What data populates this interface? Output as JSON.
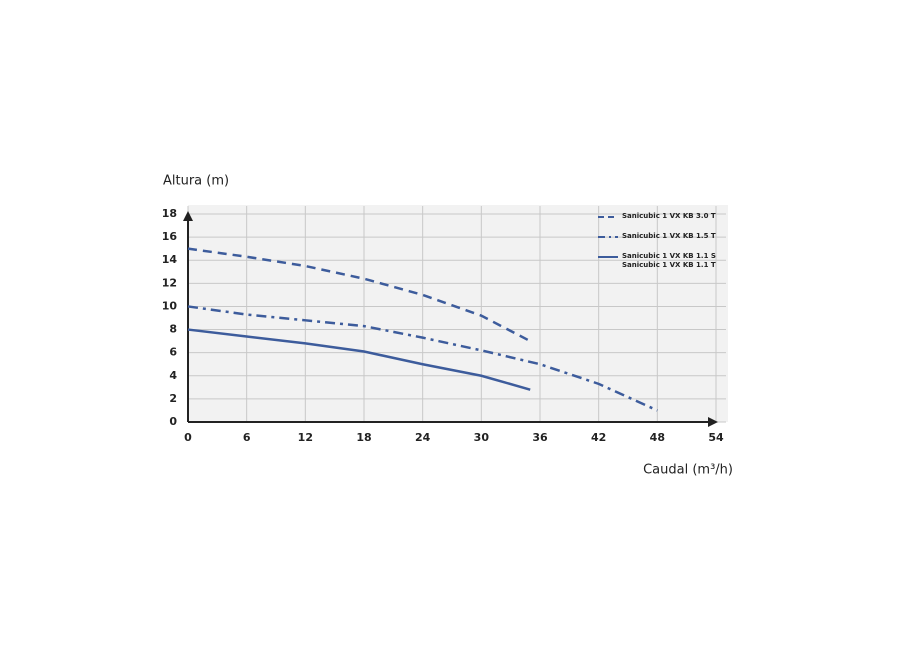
{
  "chart_data": {
    "type": "line",
    "y_label": "Altura (m)",
    "x_label": "Caudal (m³/h)",
    "xlim": [
      0,
      54
    ],
    "xticks": [
      0,
      6,
      12,
      18,
      24,
      30,
      36,
      42,
      48,
      54
    ],
    "ylim": [
      0,
      18
    ],
    "yticks": [
      0,
      2,
      4,
      6,
      8,
      10,
      12,
      14,
      16,
      18
    ],
    "grid": true,
    "legend": "upper right",
    "series": [
      {
        "name": "Sanicubic 1 VX KB 3.0 T",
        "color": "#3d5c9c",
        "dash": "dashed",
        "x": [
          0,
          6,
          12,
          18,
          24,
          30,
          35
        ],
        "values": [
          15,
          14.3,
          13.5,
          12.4,
          11,
          9.2,
          7
        ]
      },
      {
        "name": "Sanicubic 1 VX KB 1.5 T",
        "color": "#3d5c9c",
        "dash": "dashdot",
        "x": [
          0,
          6,
          12,
          18,
          24,
          30,
          36,
          42,
          48
        ],
        "values": [
          10,
          9.3,
          8.8,
          8.3,
          7.3,
          6.2,
          5,
          3.3,
          1
        ]
      },
      {
        "name": [
          "Sanicubic 1 VX KB 1.1 S",
          "Sanicubic 1 VX KB 1.1 T"
        ],
        "color": "#3d5c9c",
        "dash": "solid",
        "x": [
          0,
          6,
          12,
          18,
          24,
          30,
          35
        ],
        "values": [
          8,
          7.4,
          6.8,
          6.1,
          5,
          4,
          2.8
        ]
      }
    ]
  }
}
